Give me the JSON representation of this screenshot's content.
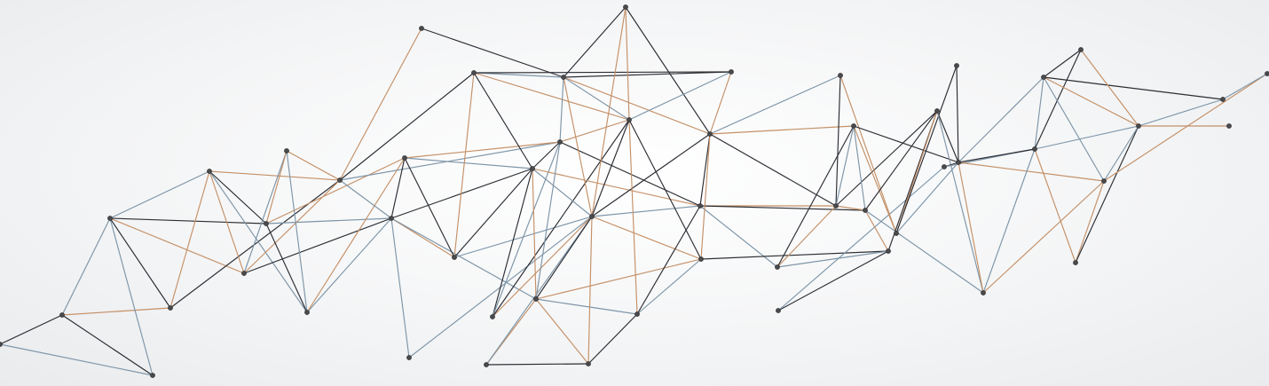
{
  "artwork": {
    "description_free": true,
    "palette": {
      "background": "#f3f4f5",
      "line_dark": "#2b2d33",
      "line_blue": "#7d95a8",
      "line_copper": "#c49067",
      "node": "#4a4a4c"
    }
  }
}
